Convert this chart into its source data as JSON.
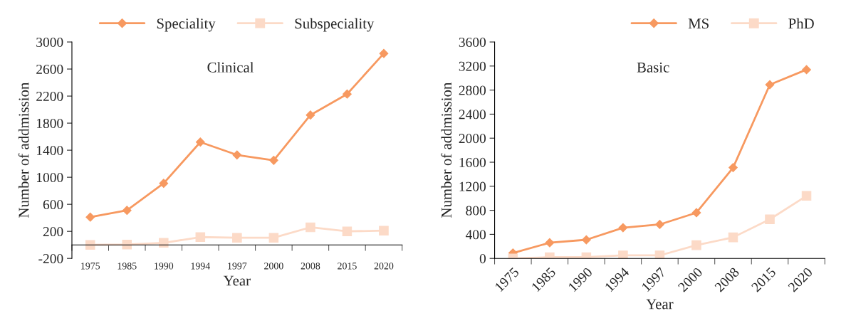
{
  "chart_data": [
    {
      "type": "line",
      "annotations": [
        "Clinical"
      ],
      "xlabel": "Year",
      "ylabel": "Number of addmission",
      "categories": [
        "1975",
        "1985",
        "1990",
        "1994",
        "1997",
        "2000",
        "2008",
        "2015",
        "2020"
      ],
      "series": [
        {
          "name": "Speciality",
          "color": "#f79960",
          "marker": "diamond",
          "values": [
            410,
            510,
            910,
            1520,
            1330,
            1250,
            1920,
            2230,
            2830
          ]
        },
        {
          "name": "Subspeciality",
          "color": "#fcdac7",
          "marker": "square",
          "values": [
            0,
            5,
            30,
            115,
            105,
            105,
            260,
            200,
            210
          ]
        }
      ],
      "ylim": [
        -200,
        3000
      ],
      "yticks": [
        -200,
        200,
        600,
        1000,
        1400,
        1800,
        2200,
        2600,
        3000
      ],
      "legend": "top",
      "grid": false
    },
    {
      "type": "line",
      "annotations": [
        "Basic"
      ],
      "xlabel": "Year",
      "ylabel": "Number of addmission",
      "categories": [
        "1975",
        "1985",
        "1990",
        "1994",
        "1997",
        "2000",
        "2008",
        "2015",
        "2020"
      ],
      "series": [
        {
          "name": "MS",
          "color": "#f79960",
          "marker": "diamond",
          "values": [
            90,
            260,
            310,
            510,
            565,
            760,
            1510,
            2890,
            3140
          ]
        },
        {
          "name": "PhD",
          "color": "#fcdac7",
          "marker": "square",
          "values": [
            0,
            20,
            20,
            50,
            50,
            220,
            350,
            650,
            1040
          ]
        }
      ],
      "ylim": [
        0,
        3600
      ],
      "yticks": [
        0,
        400,
        800,
        1200,
        1600,
        2000,
        2400,
        2800,
        3200,
        3600
      ],
      "legend": "top right",
      "grid": false
    }
  ]
}
